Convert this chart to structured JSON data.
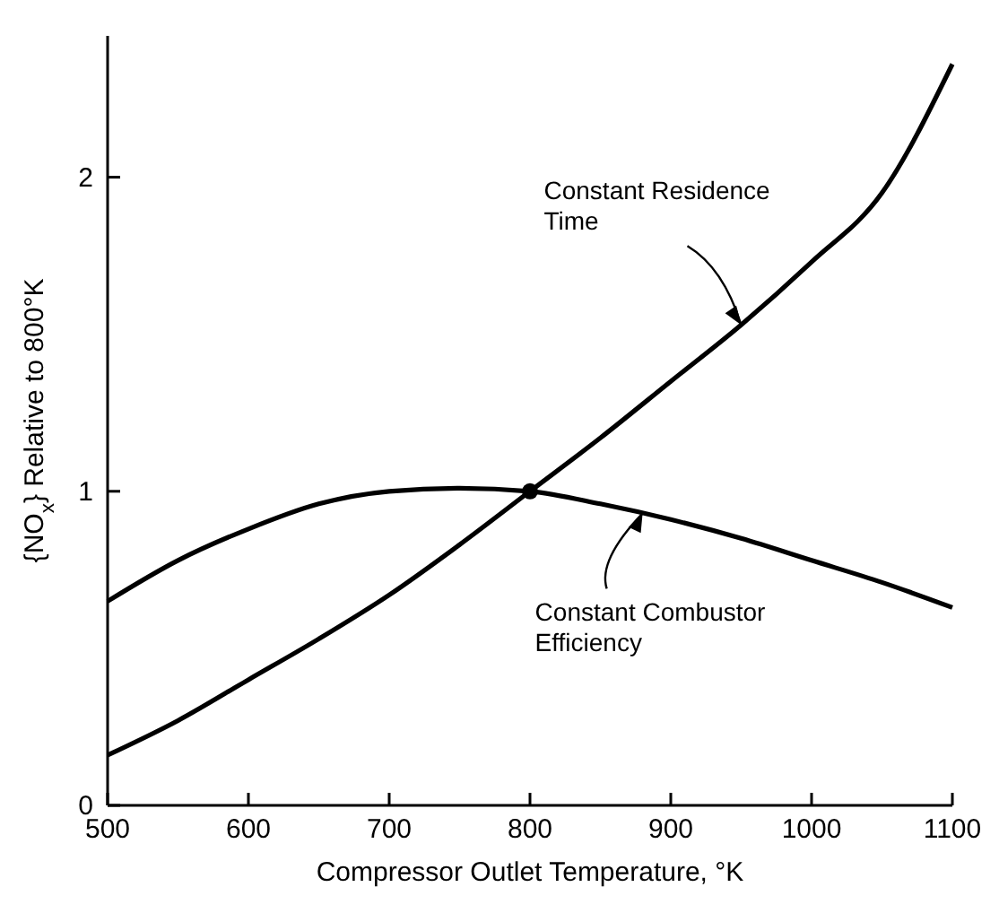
{
  "chart_data": {
    "type": "line",
    "xlabel": "Compressor Outlet Temperature, °K",
    "ylabel": "{NO$_{x}$} Relative to 800°K",
    "xlim": [
      500,
      1100
    ],
    "xticks": [
      500,
      600,
      700,
      800,
      900,
      1000,
      1100
    ],
    "ylim": [
      0,
      2.45
    ],
    "yticks": [
      0,
      1,
      2
    ],
    "grid": false,
    "line_style": "solid",
    "marker": "none",
    "series": [
      {
        "color": "#000000",
        "x": [
          500,
          550,
          600,
          650,
          700,
          750,
          800,
          850,
          900,
          950,
          1000,
          1050,
          1100
        ],
        "values": [
          0.16,
          0.27,
          0.4,
          0.53,
          0.67,
          0.83,
          1.0,
          1.17,
          1.35,
          1.53,
          1.73,
          1.95,
          2.36
        ]
      },
      {
        "color": "#000000",
        "x": [
          500,
          550,
          600,
          650,
          700,
          750,
          800,
          850,
          900,
          950,
          1000,
          1050,
          1100
        ],
        "values": [
          0.65,
          0.78,
          0.88,
          0.96,
          1.0,
          1.01,
          1.0,
          0.96,
          0.91,
          0.85,
          0.78,
          0.71,
          0.63
        ]
      },
      {
        "type": "scatter",
        "marker": "circle",
        "color": "#000000",
        "x": [
          800
        ],
        "values": [
          1.0
        ]
      }
    ],
    "annotations": [
      {
        "text": "Constant Residence Time",
        "x": 950,
        "y": 1.53
      },
      {
        "text": "Constant Combustor Efficiency",
        "x": 880,
        "y": 0.93
      }
    ]
  }
}
